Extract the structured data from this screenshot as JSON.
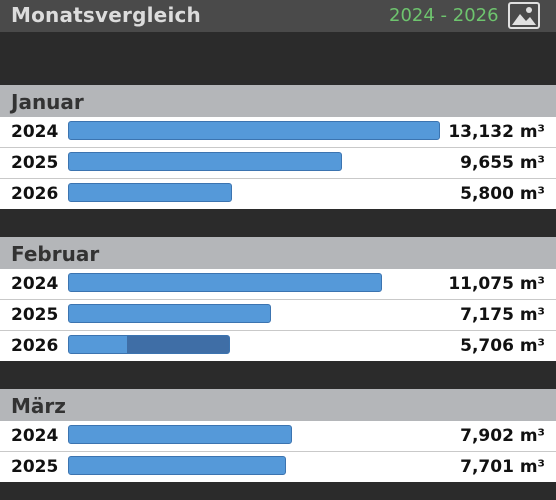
{
  "header": {
    "title": "Monatsvergleich",
    "years_range": "2024 - 2026",
    "image_icon": "image-icon"
  },
  "colors": {
    "bar": "#5599d9",
    "bar_dark": "#3f6ea6",
    "range_text": "#6ec46e",
    "section_header": "#b4b6b9"
  },
  "months": [
    {
      "name": "Januar",
      "rows": [
        {
          "year": "2024",
          "value": 13132,
          "value_label": "13,132 m³"
        },
        {
          "year": "2025",
          "value": 9655,
          "value_label": "9,655 m³"
        },
        {
          "year": "2026",
          "value": 5800,
          "value_label": "5,800 m³"
        }
      ]
    },
    {
      "name": "Februar",
      "rows": [
        {
          "year": "2024",
          "value": 11075,
          "value_label": "11,075 m³"
        },
        {
          "year": "2025",
          "value": 7175,
          "value_label": "7,175 m³"
        },
        {
          "year": "2026",
          "value": 5706,
          "value_label": "5,706 m³",
          "dark_fraction": 0.64
        }
      ]
    },
    {
      "name": "März",
      "rows": [
        {
          "year": "2024",
          "value": 7902,
          "value_label": "7,902 m³"
        },
        {
          "year": "2025",
          "value": 7701,
          "value_label": "7,701 m³"
        }
      ]
    }
  ],
  "max_value": 13132
}
